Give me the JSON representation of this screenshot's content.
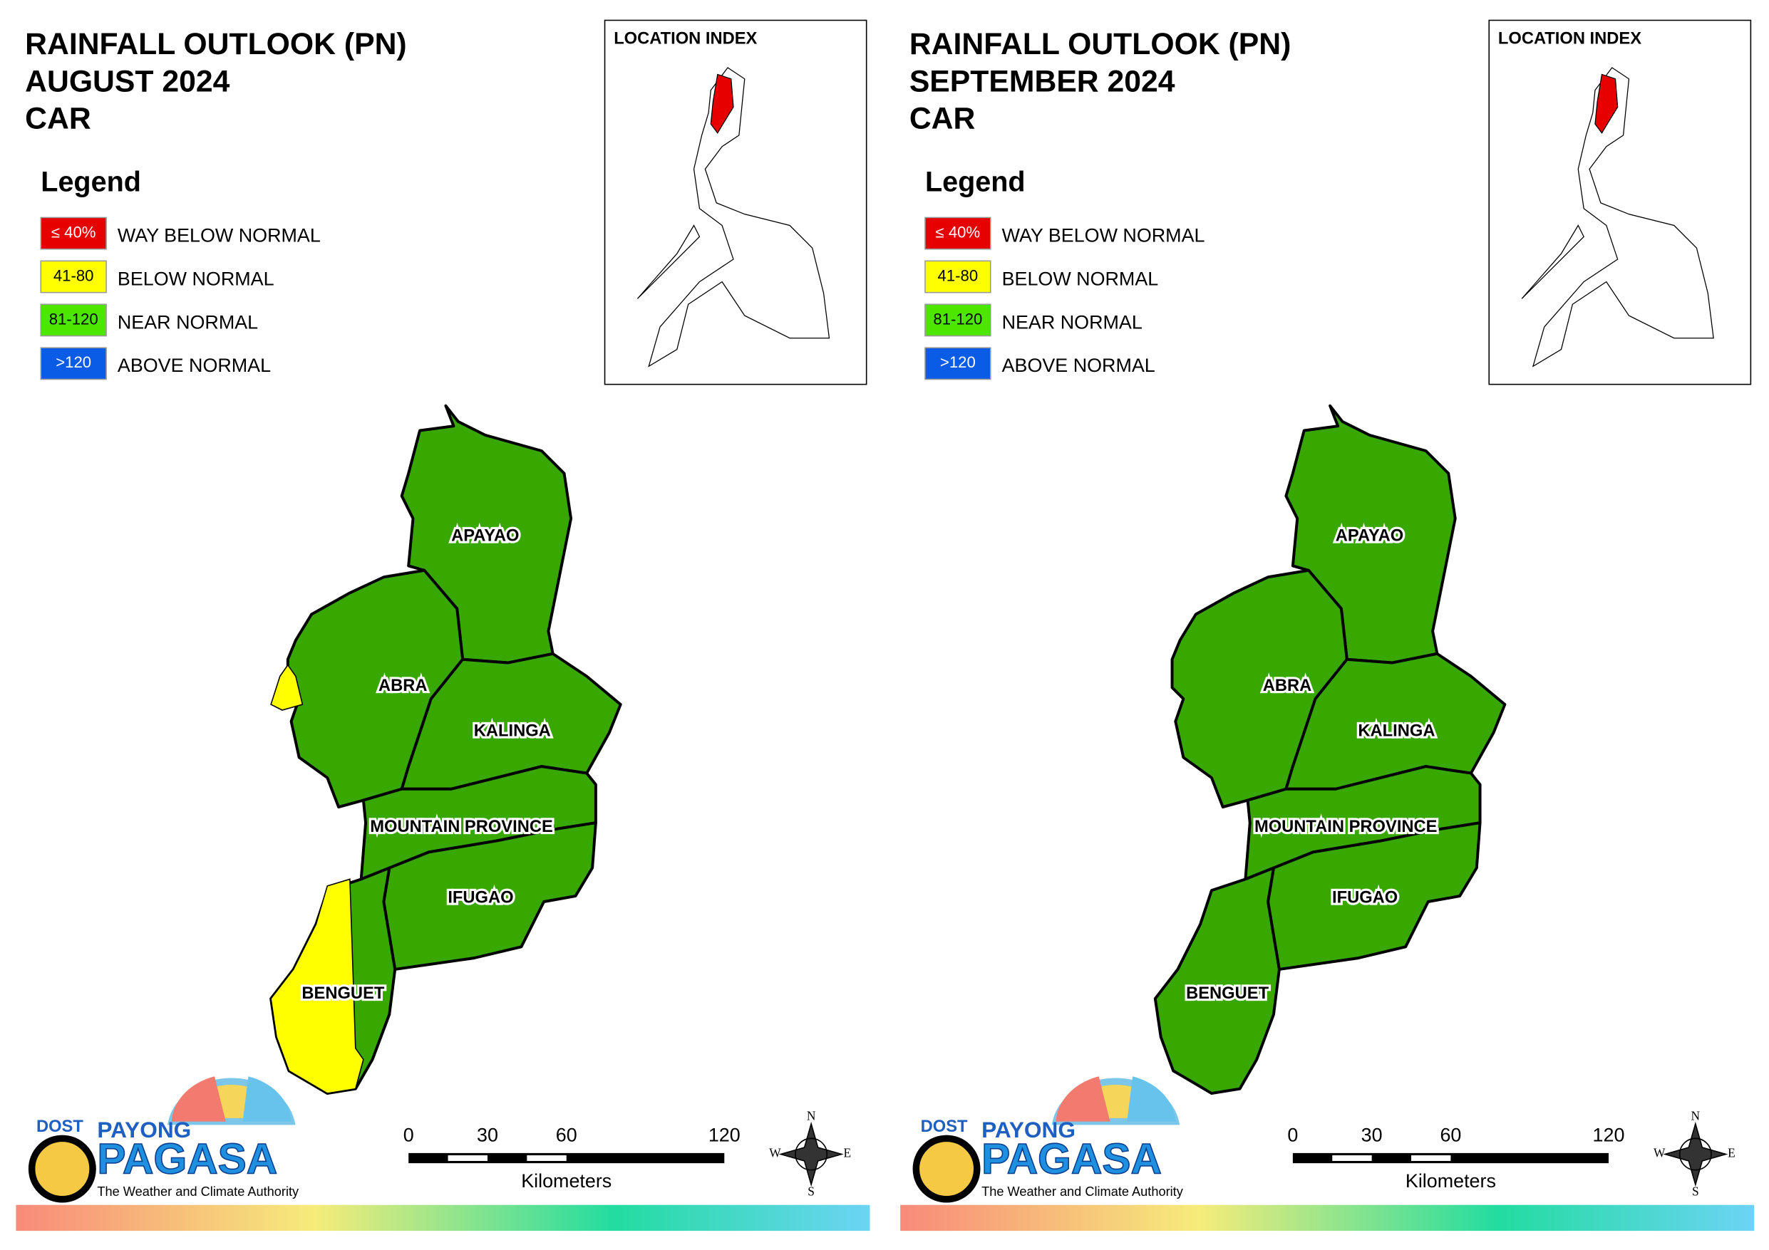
{
  "panels": [
    {
      "title_lines": [
        "RAINFALL OUTLOOK (PN)",
        "AUGUST 2024",
        "CAR"
      ],
      "legend": {
        "title": "Legend",
        "items": [
          {
            "range": "≤ 40%",
            "label": "WAY BELOW NORMAL",
            "color": "#e60000"
          },
          {
            "range": "41-80",
            "label": "BELOW NORMAL",
            "color": "#ffff00"
          },
          {
            "range": "81-120",
            "label": "NEAR NORMAL",
            "color": "#4ce600"
          },
          {
            "range": ">120",
            "label": "ABOVE NORMAL",
            "color": "#0a5ce6"
          }
        ]
      },
      "location_index": "LOCATION INDEX",
      "provinces": [
        {
          "name": "APAYAO",
          "colors": [
            "#38a800"
          ]
        },
        {
          "name": "ABRA",
          "colors": [
            "#38a800",
            "#ffff00"
          ]
        },
        {
          "name": "KALINGA",
          "colors": [
            "#38a800"
          ]
        },
        {
          "name": "MOUNTAIN PROVINCE",
          "colors": [
            "#38a800"
          ]
        },
        {
          "name": "IFUGAO",
          "colors": [
            "#38a800"
          ]
        },
        {
          "name": "BENGUET",
          "colors": [
            "#38a800",
            "#ffff00"
          ]
        }
      ],
      "scale": {
        "ticks": [
          0,
          30,
          60,
          120
        ],
        "unit": "Kilometers"
      },
      "compass": {
        "n": "N",
        "e": "E",
        "s": "S",
        "w": "W"
      },
      "logo": {
        "dost": "DOST",
        "payong": "PAYONG",
        "pagasa": "PAGASA",
        "tagline": "The Weather and Climate Authority"
      }
    },
    {
      "title_lines": [
        "RAINFALL OUTLOOK (PN)",
        "SEPTEMBER 2024",
        "CAR"
      ],
      "legend": {
        "title": "Legend",
        "items": [
          {
            "range": "≤ 40%",
            "label": "WAY BELOW NORMAL",
            "color": "#e60000"
          },
          {
            "range": "41-80",
            "label": "BELOW NORMAL",
            "color": "#ffff00"
          },
          {
            "range": "81-120",
            "label": "NEAR NORMAL",
            "color": "#4ce600"
          },
          {
            "range": ">120",
            "label": "ABOVE NORMAL",
            "color": "#0a5ce6"
          }
        ]
      },
      "location_index": "LOCATION INDEX",
      "provinces": [
        {
          "name": "APAYAO",
          "colors": [
            "#38a800"
          ]
        },
        {
          "name": "ABRA",
          "colors": [
            "#38a800"
          ]
        },
        {
          "name": "KALINGA",
          "colors": [
            "#38a800"
          ]
        },
        {
          "name": "MOUNTAIN PROVINCE",
          "colors": [
            "#38a800"
          ]
        },
        {
          "name": "IFUGAO",
          "colors": [
            "#38a800"
          ]
        },
        {
          "name": "BENGUET",
          "colors": [
            "#38a800"
          ]
        }
      ],
      "scale": {
        "ticks": [
          0,
          30,
          60,
          120
        ],
        "unit": "Kilometers"
      },
      "compass": {
        "n": "N",
        "e": "E",
        "s": "S",
        "w": "W"
      },
      "logo": {
        "dost": "DOST",
        "payong": "PAYONG",
        "pagasa": "PAGASA",
        "tagline": "The Weather and Climate Authority"
      }
    }
  ]
}
